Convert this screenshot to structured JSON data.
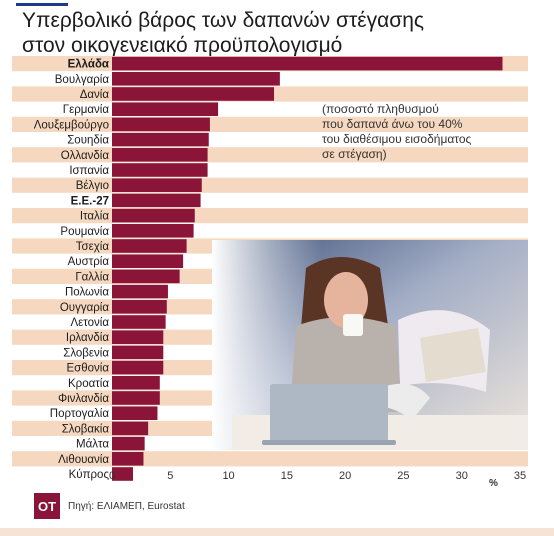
{
  "title_lines": [
    "Υπερβολικό βάρος των δαπανών στέγασης",
    "στον οικογενειακό προϋπολογισμό"
  ],
  "note_lines": [
    "(ποσοστό πληθυσμού",
    "που δαπανά άνω του 40%",
    "του διαθέσιμου εισοδήματος",
    "σε στέγαση)"
  ],
  "source": "Πηγή: ΕΛΙΑΜΕΠ, Eurostat",
  "logo_text": "OT",
  "colors": {
    "bar": "#8a1538",
    "row_band": "#f5d8bf",
    "text": "#1d1d1d"
  },
  "chart_data": {
    "type": "bar",
    "orientation": "horizontal",
    "categories": [
      "Ελλάδα",
      "Βουλγαρία",
      "Δανία",
      "Γερμανία",
      "Λουξεμβούργο",
      "Σουηδία",
      "Ολλανδία",
      "Ισπανία",
      "Βέλγιο",
      "Ε.Ε.-27",
      "Ιταλία",
      "Ρουμανία",
      "Τσεχία",
      "Αυστρία",
      "Γαλλία",
      "Πολωνία",
      "Ουγγαρία",
      "Λετονία",
      "Ιρλανδία",
      "Σλοβενία",
      "Εσθονία",
      "Κροατία",
      "Φινλανδία",
      "Πορτογαλία",
      "Σλοβακία",
      "Μάλτα",
      "Λιθουανία",
      "Κύπρος"
    ],
    "bold_categories": [
      "Ελλάδα",
      "Ε.Ε.-27"
    ],
    "values": [
      33.5,
      14.4,
      13.9,
      9.1,
      8.4,
      8.3,
      8.2,
      8.2,
      7.7,
      7.6,
      7.1,
      7.0,
      6.4,
      6.1,
      5.8,
      4.8,
      4.7,
      4.6,
      4.4,
      4.4,
      4.4,
      4.1,
      4.1,
      3.9,
      3.1,
      2.8,
      2.7,
      1.8
    ],
    "xlim": [
      0,
      35
    ],
    "x_ticks": [
      0,
      5,
      10,
      15,
      20,
      25,
      30,
      35
    ],
    "x_unit": "%"
  }
}
